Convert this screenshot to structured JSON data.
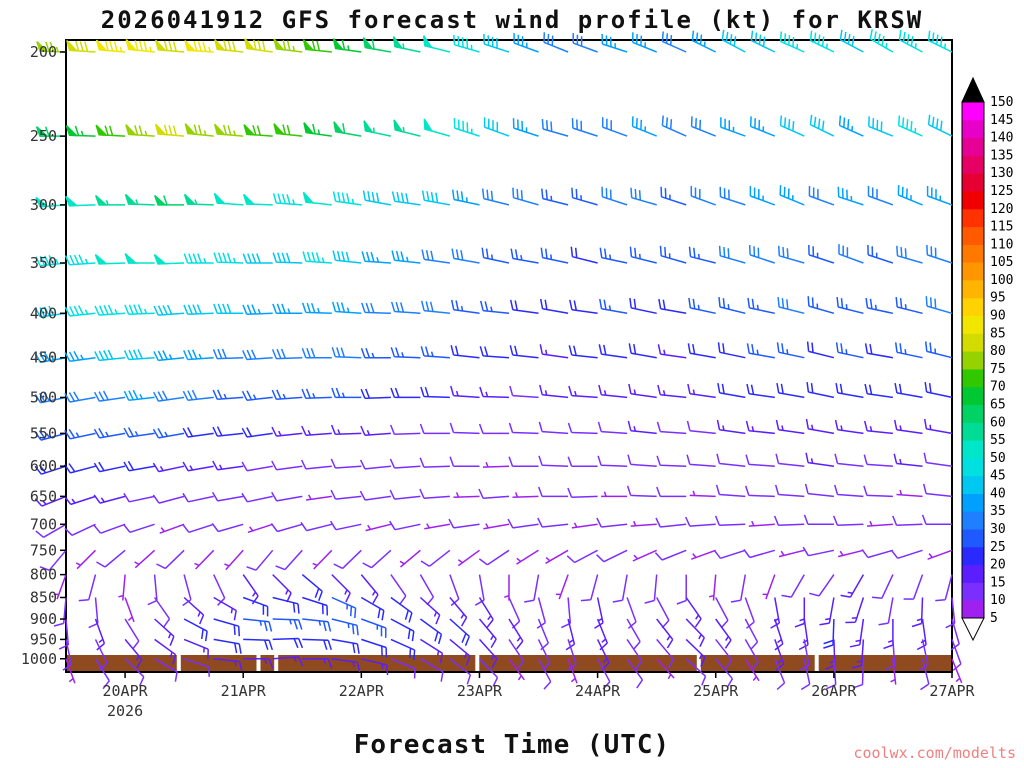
{
  "title": "2026041912 GFS forecast wind profile (kt) for KRSW",
  "xlabel": "Forecast Time (UTC)",
  "watermark": "coolwx.com/modelts",
  "axes": {
    "y_ticks": [
      200,
      250,
      300,
      350,
      400,
      450,
      500,
      550,
      600,
      650,
      700,
      750,
      800,
      850,
      900,
      950,
      1000
    ],
    "x_ticks": [
      {
        "t": 2,
        "label": "20APR"
      },
      {
        "t": 6,
        "label": "21APR"
      },
      {
        "t": 10,
        "label": "22APR"
      },
      {
        "t": 14,
        "label": "23APR"
      },
      {
        "t": 18,
        "label": "24APR"
      },
      {
        "t": 22,
        "label": "25APR"
      },
      {
        "t": 26,
        "label": "26APR"
      },
      {
        "t": 30,
        "label": "27APR"
      }
    ],
    "year_label": "2026"
  },
  "colorbar": {
    "labels": [
      5,
      10,
      15,
      20,
      25,
      30,
      35,
      40,
      45,
      50,
      55,
      60,
      65,
      70,
      75,
      80,
      85,
      90,
      95,
      100,
      105,
      110,
      115,
      120,
      125,
      130,
      135,
      140,
      145,
      150
    ],
    "colors": [
      "#a020f0",
      "#7b2fff",
      "#5a1eff",
      "#2a2aff",
      "#1e5aff",
      "#1e7fff",
      "#00a0ff",
      "#00c8f0",
      "#00e0e0",
      "#00e6c8",
      "#00dc96",
      "#00d264",
      "#00c832",
      "#32c800",
      "#96d200",
      "#d2dc00",
      "#f0e600",
      "#ffd200",
      "#ffb400",
      "#ff9600",
      "#ff7800",
      "#ff5a00",
      "#ff3200",
      "#f00000",
      "#e60032",
      "#e60064",
      "#e60096",
      "#e600c8",
      "#ff00ff",
      "#ff50ff"
    ],
    "over_color": "#000000",
    "under_color": "#ffffff"
  },
  "ground": {
    "color": "#8f4a20",
    "gaps": [
      0.125,
      0.215,
      0.235,
      0.462,
      0.712,
      0.845
    ]
  },
  "chart_data": {
    "type": "wind-barb-profile",
    "model": "GFS",
    "run": "2026041912",
    "station": "KRSW",
    "units": "kt",
    "time_start": "2026-04-19 12Z",
    "time_interval_hours": 6,
    "time_steps": 31,
    "y_axis": {
      "scale": "log-pressure",
      "range_hpa": [
        200,
        1050
      ]
    },
    "levels": [
      {
        "p": 200,
        "speeds_kt": [
          75,
          80,
          85,
          85,
          80,
          85,
          80,
          80,
          75,
          70,
          65,
          60,
          55,
          50,
          45,
          40,
          35,
          30,
          30,
          35,
          35,
          30,
          35,
          40,
          40,
          45,
          45,
          40,
          45,
          45,
          45
        ],
        "dirs_deg": [
          272,
          274,
          275,
          276,
          275,
          274,
          276,
          278,
          277,
          276,
          278,
          280,
          282,
          284,
          286,
          288,
          290,
          292,
          290,
          288,
          292,
          294,
          296,
          298,
          296,
          294,
          296,
          298,
          300,
          298,
          296
        ]
      },
      {
        "p": 250,
        "speeds_kt": [
          60,
          65,
          70,
          75,
          80,
          75,
          75,
          70,
          70,
          65,
          60,
          55,
          55,
          50,
          45,
          40,
          35,
          30,
          30,
          30,
          35,
          30,
          30,
          35,
          35,
          40,
          40,
          35,
          40,
          45,
          40
        ],
        "dirs_deg": [
          270,
          272,
          273,
          274,
          275,
          276,
          275,
          274,
          276,
          278,
          280,
          282,
          284,
          286,
          288,
          290,
          288,
          286,
          288,
          290,
          292,
          294,
          292,
          290,
          292,
          294,
          296,
          294,
          292,
          294,
          296
        ]
      },
      {
        "p": 300,
        "speeds_kt": [
          50,
          50,
          55,
          55,
          60,
          55,
          50,
          50,
          45,
          50,
          45,
          40,
          40,
          40,
          35,
          30,
          30,
          25,
          25,
          30,
          30,
          25,
          30,
          30,
          35,
          35,
          30,
          35,
          30,
          35,
          35
        ],
        "dirs_deg": [
          266,
          268,
          270,
          272,
          270,
          272,
          274,
          272,
          274,
          276,
          278,
          280,
          278,
          280,
          282,
          284,
          286,
          284,
          286,
          288,
          286,
          288,
          290,
          288,
          290,
          292,
          290,
          288,
          290,
          292,
          290
        ]
      },
      {
        "p": 350,
        "speeds_kt": [
          45,
          45,
          50,
          50,
          50,
          45,
          45,
          40,
          40,
          45,
          40,
          35,
          35,
          30,
          30,
          25,
          25,
          25,
          20,
          25,
          25,
          25,
          25,
          30,
          30,
          30,
          25,
          30,
          25,
          30,
          30
        ],
        "dirs_deg": [
          264,
          266,
          268,
          270,
          268,
          270,
          272,
          270,
          272,
          274,
          276,
          274,
          276,
          278,
          280,
          282,
          280,
          282,
          284,
          282,
          284,
          286,
          284,
          286,
          288,
          286,
          288,
          290,
          288,
          286,
          288
        ]
      },
      {
        "p": 400,
        "speeds_kt": [
          40,
          45,
          45,
          45,
          40,
          40,
          40,
          35,
          35,
          35,
          35,
          30,
          30,
          30,
          25,
          25,
          20,
          20,
          20,
          25,
          20,
          20,
          25,
          25,
          25,
          30,
          25,
          25,
          25,
          25,
          30
        ],
        "dirs_deg": [
          262,
          264,
          266,
          268,
          266,
          268,
          270,
          268,
          270,
          272,
          274,
          272,
          274,
          276,
          278,
          276,
          278,
          280,
          278,
          280,
          282,
          280,
          282,
          284,
          282,
          284,
          286,
          284,
          282,
          284,
          286
        ]
      },
      {
        "p": 450,
        "speeds_kt": [
          35,
          35,
          40,
          40,
          35,
          35,
          30,
          30,
          30,
          30,
          30,
          25,
          25,
          25,
          20,
          20,
          20,
          15,
          20,
          20,
          20,
          15,
          20,
          20,
          25,
          25,
          20,
          25,
          20,
          25,
          25
        ],
        "dirs_deg": [
          260,
          262,
          264,
          266,
          264,
          266,
          268,
          266,
          268,
          270,
          272,
          270,
          272,
          274,
          276,
          274,
          276,
          278,
          276,
          278,
          280,
          278,
          280,
          282,
          280,
          282,
          284,
          282,
          280,
          282,
          284
        ]
      },
      {
        "p": 500,
        "speeds_kt": [
          30,
          30,
          30,
          35,
          30,
          30,
          25,
          25,
          25,
          25,
          25,
          20,
          20,
          20,
          15,
          15,
          10,
          15,
          15,
          15,
          15,
          15,
          15,
          20,
          20,
          20,
          20,
          20,
          20,
          20,
          20
        ],
        "dirs_deg": [
          258,
          260,
          262,
          264,
          262,
          264,
          266,
          264,
          266,
          268,
          270,
          268,
          270,
          272,
          274,
          272,
          274,
          276,
          274,
          276,
          278,
          276,
          278,
          280,
          278,
          280,
          282,
          280,
          278,
          280,
          282
        ]
      },
      {
        "p": 550,
        "speeds_kt": [
          25,
          25,
          25,
          25,
          25,
          20,
          20,
          20,
          15,
          15,
          15,
          15,
          10,
          10,
          10,
          10,
          10,
          10,
          10,
          10,
          15,
          10,
          10,
          15,
          15,
          15,
          15,
          15,
          15,
          15,
          15
        ],
        "dirs_deg": [
          255,
          258,
          260,
          262,
          260,
          262,
          264,
          262,
          264,
          266,
          268,
          266,
          268,
          270,
          272,
          270,
          272,
          274,
          272,
          274,
          276,
          274,
          276,
          278,
          276,
          278,
          280,
          278,
          276,
          278,
          280
        ]
      },
      {
        "p": 600,
        "speeds_kt": [
          20,
          20,
          20,
          20,
          15,
          15,
          15,
          10,
          10,
          10,
          10,
          10,
          10,
          10,
          10,
          5,
          10,
          10,
          10,
          10,
          10,
          10,
          10,
          10,
          10,
          10,
          15,
          10,
          10,
          15,
          10
        ],
        "dirs_deg": [
          252,
          255,
          258,
          260,
          258,
          260,
          262,
          260,
          262,
          264,
          266,
          264,
          266,
          268,
          270,
          268,
          270,
          272,
          270,
          272,
          274,
          272,
          274,
          276,
          274,
          276,
          278,
          276,
          274,
          276,
          278
        ]
      },
      {
        "p": 650,
        "speeds_kt": [
          15,
          15,
          15,
          10,
          10,
          10,
          10,
          10,
          10,
          5,
          10,
          10,
          10,
          10,
          5,
          10,
          5,
          10,
          10,
          5,
          10,
          10,
          5,
          10,
          10,
          10,
          10,
          10,
          10,
          5,
          10
        ],
        "dirs_deg": [
          248,
          252,
          255,
          258,
          255,
          258,
          260,
          258,
          260,
          262,
          264,
          262,
          264,
          266,
          268,
          266,
          268,
          270,
          268,
          270,
          272,
          270,
          272,
          274,
          272,
          274,
          276,
          274,
          272,
          274,
          276
        ]
      },
      {
        "p": 700,
        "speeds_kt": [
          10,
          10,
          10,
          10,
          5,
          10,
          10,
          5,
          10,
          10,
          10,
          5,
          10,
          5,
          10,
          5,
          10,
          10,
          5,
          10,
          5,
          10,
          10,
          10,
          5,
          10,
          10,
          10,
          5,
          10,
          10
        ],
        "dirs_deg": [
          240,
          245,
          250,
          252,
          250,
          252,
          254,
          252,
          254,
          256,
          258,
          256,
          258,
          260,
          262,
          260,
          262,
          264,
          262,
          264,
          266,
          264,
          266,
          268,
          266,
          268,
          270,
          268,
          266,
          268,
          270
        ]
      },
      {
        "p": 750,
        "speeds_kt": [
          10,
          5,
          10,
          5,
          10,
          5,
          5,
          10,
          10,
          5,
          10,
          10,
          5,
          10,
          5,
          10,
          5,
          5,
          10,
          10,
          5,
          10,
          5,
          10,
          10,
          5,
          10,
          5,
          10,
          10,
          5
        ],
        "dirs_deg": [
          220,
          225,
          230,
          228,
          226,
          224,
          222,
          220,
          222,
          224,
          226,
          228,
          230,
          232,
          234,
          236,
          238,
          240,
          242,
          244,
          246,
          248,
          250,
          252,
          254,
          256,
          258,
          256,
          254,
          252,
          250
        ]
      },
      {
        "p": 800,
        "speeds_kt": [
          5,
          10,
          5,
          10,
          10,
          10,
          15,
          15,
          20,
          15,
          15,
          10,
          10,
          10,
          10,
          5,
          10,
          5,
          10,
          10,
          10,
          10,
          5,
          10,
          5,
          10,
          10,
          15,
          10,
          10,
          10
        ],
        "dirs_deg": [
          200,
          195,
          185,
          175,
          165,
          155,
          145,
          135,
          130,
          135,
          140,
          145,
          150,
          160,
          170,
          180,
          190,
          200,
          195,
          190,
          185,
          180,
          185,
          190,
          200,
          210,
          215,
          210,
          205,
          200,
          195
        ]
      },
      {
        "p": 850,
        "speeds_kt": [
          10,
          10,
          5,
          10,
          15,
          15,
          20,
          20,
          20,
          25,
          20,
          20,
          15,
          15,
          15,
          10,
          10,
          10,
          15,
          10,
          10,
          15,
          10,
          10,
          15,
          15,
          15,
          15,
          10,
          15,
          10
        ],
        "dirs_deg": [
          185,
          175,
          160,
          145,
          132,
          120,
          110,
          104,
          108,
          114,
          120,
          126,
          132,
          140,
          148,
          156,
          165,
          175,
          168,
          160,
          152,
          145,
          152,
          160,
          170,
          180,
          190,
          198,
          190,
          182,
          174
        ]
      },
      {
        "p": 900,
        "speeds_kt": [
          10,
          15,
          10,
          15,
          20,
          20,
          25,
          25,
          25,
          25,
          25,
          20,
          20,
          20,
          15,
          15,
          10,
          15,
          15,
          10,
          15,
          15,
          15,
          10,
          15,
          15,
          20,
          15,
          15,
          15,
          10
        ],
        "dirs_deg": [
          175,
          160,
          148,
          132,
          118,
          106,
          96,
          92,
          96,
          104,
          110,
          118,
          126,
          132,
          140,
          148,
          158,
          166,
          158,
          150,
          142,
          136,
          144,
          152,
          162,
          172,
          182,
          188,
          180,
          172,
          164
        ]
      },
      {
        "p": 950,
        "speeds_kt": [
          10,
          10,
          15,
          15,
          15,
          20,
          20,
          20,
          20,
          20,
          20,
          20,
          15,
          15,
          15,
          10,
          10,
          10,
          15,
          10,
          10,
          15,
          10,
          10,
          15,
          10,
          15,
          15,
          10,
          10,
          10
        ],
        "dirs_deg": [
          168,
          154,
          140,
          126,
          112,
          100,
          92,
          88,
          92,
          100,
          108,
          114,
          122,
          130,
          138,
          146,
          154,
          162,
          154,
          146,
          140,
          134,
          142,
          150,
          160,
          170,
          178,
          184,
          176,
          168,
          160
        ]
      },
      {
        "p": 1000,
        "speeds_kt": [
          5,
          10,
          10,
          10,
          10,
          15,
          15,
          15,
          15,
          15,
          15,
          10,
          10,
          10,
          10,
          5,
          10,
          5,
          10,
          10,
          5,
          10,
          10,
          5,
          10,
          10,
          10,
          10,
          5,
          10,
          5
        ],
        "dirs_deg": [
          160,
          148,
          134,
          120,
          108,
          96,
          90,
          86,
          90,
          98,
          104,
          112,
          120,
          128,
          136,
          144,
          152,
          160,
          152,
          144,
          138,
          132,
          140,
          148,
          158,
          168,
          176,
          182,
          174,
          166,
          158
        ]
      }
    ]
  }
}
